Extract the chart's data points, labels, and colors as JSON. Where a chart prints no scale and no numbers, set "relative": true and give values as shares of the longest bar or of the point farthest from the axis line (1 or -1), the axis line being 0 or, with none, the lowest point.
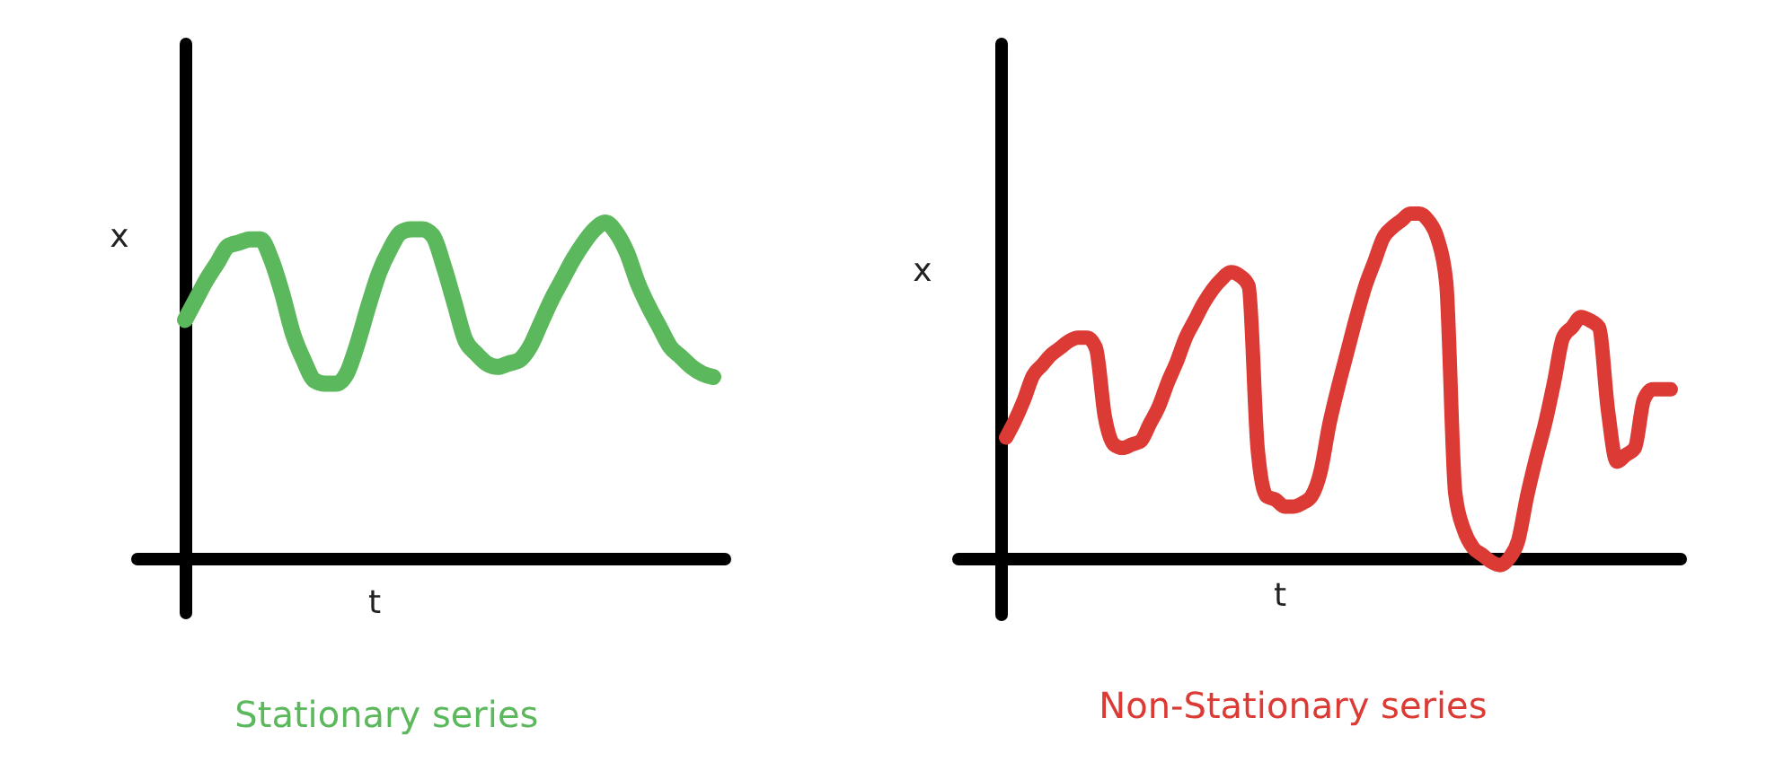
{
  "chart_data": [
    {
      "type": "line",
      "title": "Stationary series",
      "xlabel": "t",
      "ylabel": "x",
      "relative": true,
      "categories": [
        null,
        null,
        null,
        null,
        null,
        null,
        null,
        null,
        null,
        null,
        null,
        null,
        null,
        null,
        null,
        null,
        null,
        null,
        null,
        null,
        null,
        null,
        null,
        null,
        null,
        null,
        null,
        null,
        null,
        null,
        null,
        null,
        null,
        null,
        null,
        null,
        null,
        null,
        null,
        null,
        null,
        null,
        null,
        null,
        null,
        null,
        null,
        null,
        null,
        null
      ],
      "series": [
        {
          "color": "#5cb85c",
          "values": [
            0.71,
            0.77,
            0.83,
            0.88,
            0.93,
            0.94,
            0.95,
            0.95,
            0.89,
            0.79,
            0.67,
            0.59,
            0.53,
            0.52,
            0.52,
            0.55,
            0.64,
            0.75,
            0.85,
            0.92,
            0.97,
            0.98,
            0.98,
            0.96,
            0.87,
            0.76,
            0.65,
            0.61,
            0.58,
            0.57,
            0.58,
            0.59,
            0.63,
            0.7,
            0.77,
            0.83,
            0.89,
            0.94,
            0.98,
            1.0,
            0.97,
            0.91,
            0.82,
            0.75,
            0.69,
            0.63,
            0.6,
            0.57,
            0.55,
            0.54
          ]
        }
      ]
    },
    {
      "type": "line",
      "title": "Non-Stationary series",
      "xlabel": "t",
      "ylabel": "x",
      "relative": true,
      "categories": [
        null,
        null,
        null,
        null,
        null,
        null,
        null,
        null,
        null,
        null,
        null,
        null,
        null,
        null,
        null,
        null,
        null,
        null,
        null,
        null,
        null,
        null,
        null,
        null,
        null,
        null,
        null,
        null,
        null,
        null,
        null,
        null,
        null,
        null,
        null,
        null,
        null,
        null,
        null,
        null,
        null,
        null,
        null,
        null,
        null,
        null,
        null,
        null,
        null,
        null,
        null,
        null,
        null,
        null,
        null,
        null,
        null,
        null,
        null,
        null,
        null,
        null,
        null,
        null,
        null,
        null,
        null,
        null,
        null,
        null,
        null,
        null,
        null,
        null,
        null
      ],
      "series": [
        {
          "color": "#dc3a34",
          "values": [
            0.35,
            0.4,
            0.46,
            0.53,
            0.56,
            0.59,
            0.61,
            0.63,
            0.64,
            0.64,
            0.61,
            0.41,
            0.33,
            0.32,
            0.33,
            0.34,
            0.39,
            0.44,
            0.51,
            0.57,
            0.64,
            0.69,
            0.74,
            0.78,
            0.81,
            0.83,
            0.82,
            0.79,
            0.32,
            0.18,
            0.17,
            0.15,
            0.15,
            0.16,
            0.18,
            0.25,
            0.39,
            0.5,
            0.6,
            0.7,
            0.79,
            0.86,
            0.93,
            0.96,
            0.98,
            1.0,
            1.0,
            0.98,
            0.93,
            0.8,
            0.19,
            0.08,
            0.03,
            0.01,
            -0.01,
            -0.02,
            0.0,
            0.05,
            0.18,
            0.29,
            0.39,
            0.51,
            0.64,
            0.67,
            0.7,
            0.69,
            0.67,
            0.43,
            0.28,
            0.3,
            0.32,
            0.46,
            0.49,
            0.49,
            0.49
          ]
        }
      ]
    }
  ]
}
